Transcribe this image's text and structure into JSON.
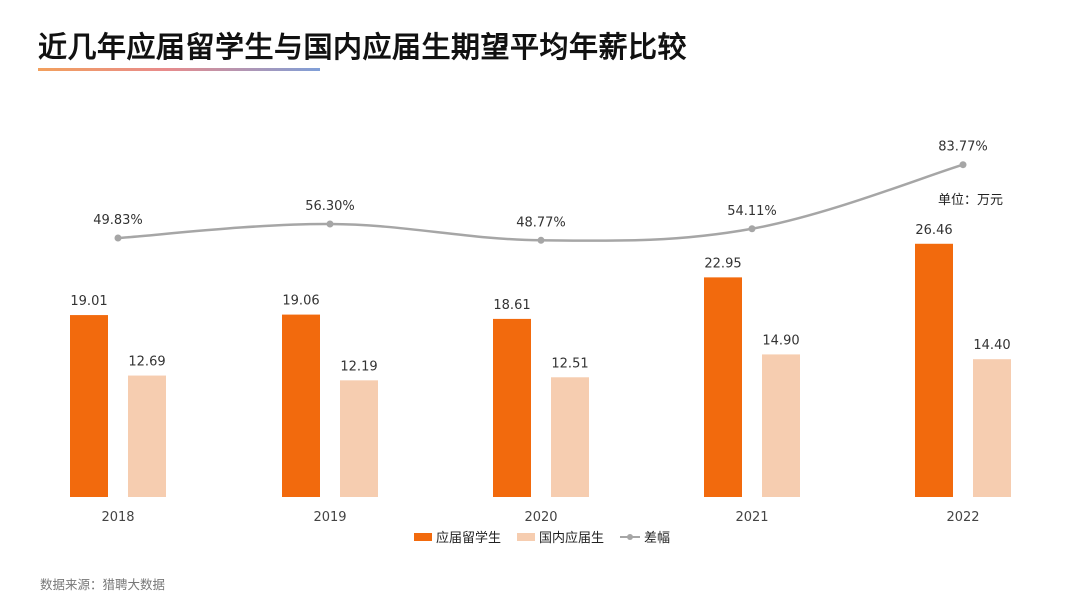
{
  "title": "近几年应届留学生与国内应届生期望平均年薪比较",
  "unit_label": "单位：万元",
  "source_label": "数据来源：猎聘大数据",
  "colors": {
    "overseas": "#f26a0d",
    "domestic": "#f6cdb0",
    "gap_line": "#a6a6a6"
  },
  "chart_data": {
    "type": "bar",
    "categories": [
      "2018",
      "2019",
      "2020",
      "2021",
      "2022"
    ],
    "series": [
      {
        "name": "应届留学生",
        "values": [
          19.01,
          19.06,
          18.61,
          22.95,
          26.46
        ],
        "labels": [
          "19.01",
          "19.06",
          "18.61",
          "22.95",
          "26.46"
        ]
      },
      {
        "name": "国内应届生",
        "values": [
          12.69,
          12.19,
          12.51,
          14.9,
          14.4
        ],
        "labels": [
          "12.69",
          "12.19",
          "12.51",
          "14.90",
          "14.40"
        ]
      }
    ],
    "line_series": {
      "name": "差幅",
      "type": "line",
      "values": [
        49.83,
        56.3,
        48.77,
        54.11,
        83.77
      ],
      "labels": [
        "49.83%",
        "56.30%",
        "48.77%",
        "54.11%",
        "83.77%"
      ]
    },
    "grid": false,
    "legend_position": "bottom-center"
  }
}
